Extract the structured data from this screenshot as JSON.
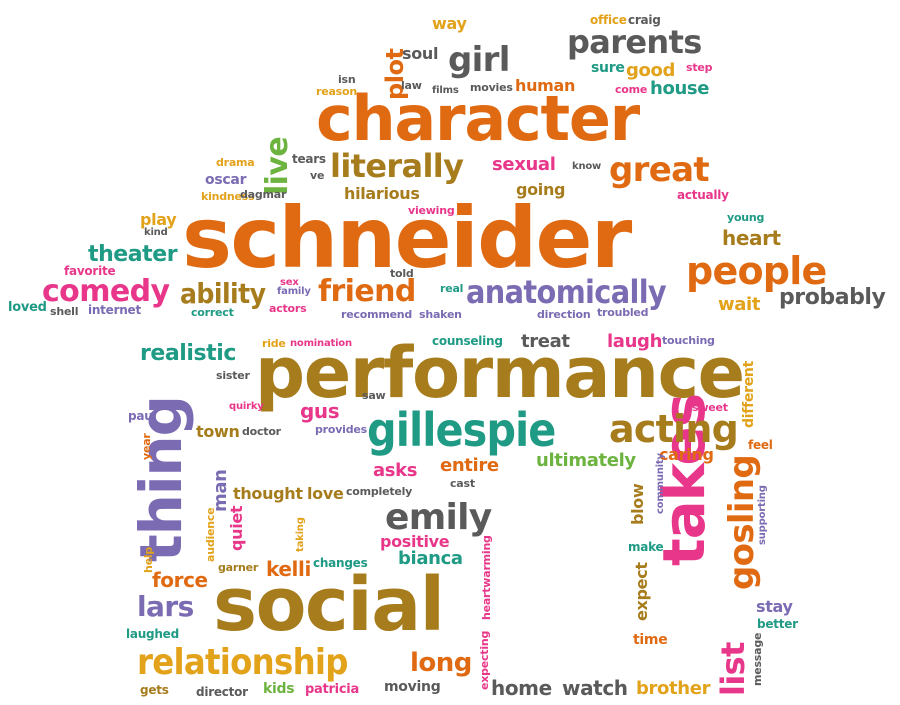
{
  "colors": {
    "orange": "#E06A12",
    "brown": "#A67C1C",
    "teal": "#1F9A84",
    "purple": "#7B6BB2",
    "pink": "#E8378A",
    "gray": "#5A5A5A",
    "green": "#6DB33F",
    "gold": "#E2A21A"
  },
  "words": [
    {
      "name": "word-schneider",
      "text": "schneider",
      "color": "orange"
    },
    {
      "name": "word-performance",
      "text": "performance",
      "color": "brown"
    },
    {
      "name": "word-character",
      "text": "character",
      "color": "orange"
    },
    {
      "name": "word-social",
      "text": "social",
      "color": "brown"
    },
    {
      "name": "word-takes",
      "text": "takes",
      "color": "pink"
    },
    {
      "name": "word-thing",
      "text": "thing",
      "color": "purple"
    },
    {
      "name": "word-gillespie",
      "text": "gillespie",
      "color": "teal"
    },
    {
      "name": "word-relationship",
      "text": "relationship",
      "color": "gold"
    },
    {
      "name": "word-anatomically",
      "text": "anatomically",
      "color": "purple"
    },
    {
      "name": "word-people",
      "text": "people",
      "color": "orange"
    },
    {
      "name": "word-acting",
      "text": "acting",
      "color": "brown"
    },
    {
      "name": "word-literally",
      "text": "literally",
      "color": "brown"
    },
    {
      "name": "word-great",
      "text": "great",
      "color": "orange"
    },
    {
      "name": "word-parents",
      "text": "parents",
      "color": "gray"
    },
    {
      "name": "word-comedy",
      "text": "comedy",
      "color": "pink"
    },
    {
      "name": "word-friend",
      "text": "friend",
      "color": "orange"
    },
    {
      "name": "word-ability",
      "text": "ability",
      "color": "brown"
    },
    {
      "name": "word-emily",
      "text": "emily",
      "color": "gray"
    },
    {
      "name": "word-gosling",
      "text": "gosling",
      "color": "orange"
    },
    {
      "name": "word-lars",
      "text": "lars",
      "color": "purple"
    },
    {
      "name": "word-girl",
      "text": "girl",
      "color": "gray"
    },
    {
      "name": "word-list",
      "text": "list",
      "color": "pink"
    },
    {
      "name": "word-long",
      "text": "long",
      "color": "orange"
    },
    {
      "name": "word-probably",
      "text": "probably",
      "color": "gray"
    },
    {
      "name": "word-realistic",
      "text": "realistic",
      "color": "teal"
    },
    {
      "name": "word-theater",
      "text": "theater",
      "color": "teal"
    },
    {
      "name": "word-heart",
      "text": "heart",
      "color": "brown"
    },
    {
      "name": "word-home",
      "text": "home",
      "color": "gray"
    },
    {
      "name": "word-watch",
      "text": "watch",
      "color": "gray"
    },
    {
      "name": "word-brother",
      "text": "brother",
      "color": "gold"
    },
    {
      "name": "word-force",
      "text": "force",
      "color": "orange"
    },
    {
      "name": "word-kelli",
      "text": "kelli",
      "color": "orange"
    },
    {
      "name": "word-positive",
      "text": "positive",
      "color": "pink"
    },
    {
      "name": "word-bianca",
      "text": "bianca",
      "color": "teal"
    },
    {
      "name": "word-entire",
      "text": "entire",
      "color": "orange"
    },
    {
      "name": "word-ultimately",
      "text": "ultimately",
      "color": "green"
    },
    {
      "name": "word-asks",
      "text": "asks",
      "color": "pink"
    },
    {
      "name": "word-gus",
      "text": "gus",
      "color": "pink"
    },
    {
      "name": "word-town",
      "text": "town",
      "color": "brown"
    },
    {
      "name": "word-thought",
      "text": "thought",
      "color": "brown"
    },
    {
      "name": "word-love",
      "text": "love",
      "color": "brown"
    },
    {
      "name": "word-caring",
      "text": "caring",
      "color": "orange"
    },
    {
      "name": "word-laugh",
      "text": "laugh",
      "color": "pink"
    },
    {
      "name": "word-treat",
      "text": "treat",
      "color": "gray"
    },
    {
      "name": "word-live",
      "text": "live",
      "color": "green"
    },
    {
      "name": "word-plot",
      "text": "plot",
      "color": "orange"
    },
    {
      "name": "word-soul",
      "text": "soul",
      "color": "gray"
    },
    {
      "name": "word-human",
      "text": "human",
      "color": "orange"
    },
    {
      "name": "word-good",
      "text": "good",
      "color": "gold"
    },
    {
      "name": "word-house",
      "text": "house",
      "color": "teal"
    },
    {
      "name": "word-sure",
      "text": "sure",
      "color": "teal"
    },
    {
      "name": "word-sexual",
      "text": "sexual",
      "color": "pink"
    },
    {
      "name": "word-going",
      "text": "going",
      "color": "brown"
    },
    {
      "name": "word-hilarious",
      "text": "hilarious",
      "color": "brown"
    },
    {
      "name": "word-oscar",
      "text": "oscar",
      "color": "purple"
    },
    {
      "name": "word-play",
      "text": "play",
      "color": "gold"
    },
    {
      "name": "word-favorite",
      "text": "favorite",
      "color": "pink"
    },
    {
      "name": "word-loved",
      "text": "loved",
      "color": "teal"
    },
    {
      "name": "word-wait",
      "text": "wait",
      "color": "gold"
    },
    {
      "name": "word-way",
      "text": "way",
      "color": "gold"
    },
    {
      "name": "word-office",
      "text": "office",
      "color": "gold"
    },
    {
      "name": "word-craig",
      "text": "craig",
      "color": "gray"
    },
    {
      "name": "word-step",
      "text": "step",
      "color": "pink"
    },
    {
      "name": "word-come",
      "text": "come",
      "color": "pink"
    },
    {
      "name": "word-isn",
      "text": "isn",
      "color": "gray"
    },
    {
      "name": "word-reason",
      "text": "reason",
      "color": "gold"
    },
    {
      "name": "word-law",
      "text": "law",
      "color": "gray"
    },
    {
      "name": "word-films",
      "text": "films",
      "color": "gray"
    },
    {
      "name": "word-movies",
      "text": "movies",
      "color": "gray"
    },
    {
      "name": "word-tears",
      "text": "tears",
      "color": "gray"
    },
    {
      "name": "word-ve",
      "text": "ve",
      "color": "gray"
    },
    {
      "name": "word-drama",
      "text": "drama",
      "color": "gold"
    },
    {
      "name": "word-kindness",
      "text": "kindness",
      "color": "gold"
    },
    {
      "name": "word-dagmar",
      "text": "dagmar",
      "color": "gray"
    },
    {
      "name": "word-know",
      "text": "know",
      "color": "gray"
    },
    {
      "name": "word-actually",
      "text": "actually",
      "color": "pink"
    },
    {
      "name": "word-viewing",
      "text": "viewing",
      "color": "pink"
    },
    {
      "name": "word-young",
      "text": "young",
      "color": "teal"
    },
    {
      "name": "word-kind",
      "text": "kind",
      "color": "gray"
    },
    {
      "name": "word-told",
      "text": "told",
      "color": "gray"
    },
    {
      "name": "word-sex",
      "text": "sex",
      "color": "pink"
    },
    {
      "name": "word-family",
      "text": "family",
      "color": "purple"
    },
    {
      "name": "word-real",
      "text": "real",
      "color": "teal"
    },
    {
      "name": "word-shell",
      "text": "shell",
      "color": "gray"
    },
    {
      "name": "word-internet",
      "text": "internet",
      "color": "purple"
    },
    {
      "name": "word-correct",
      "text": "correct",
      "color": "teal"
    },
    {
      "name": "word-actors",
      "text": "actors",
      "color": "pink"
    },
    {
      "name": "word-recommend",
      "text": "recommend",
      "color": "purple"
    },
    {
      "name": "word-shaken",
      "text": "shaken",
      "color": "purple"
    },
    {
      "name": "word-direction",
      "text": "direction",
      "color": "purple"
    },
    {
      "name": "word-troubled",
      "text": "troubled",
      "color": "purple"
    },
    {
      "name": "word-ride",
      "text": "ride",
      "color": "gold"
    },
    {
      "name": "word-nomination",
      "text": "nomination",
      "color": "pink"
    },
    {
      "name": "word-counseling",
      "text": "counseling",
      "color": "teal"
    },
    {
      "name": "word-touching",
      "text": "touching",
      "color": "purple"
    },
    {
      "name": "word-sister",
      "text": "sister",
      "color": "gray"
    },
    {
      "name": "word-saw",
      "text": "saw",
      "color": "gray"
    },
    {
      "name": "word-quirky",
      "text": "quirky",
      "color": "pink"
    },
    {
      "name": "word-paul",
      "text": "paul",
      "color": "purple"
    },
    {
      "name": "word-doctor",
      "text": "doctor",
      "color": "gray"
    },
    {
      "name": "word-provides",
      "text": "provides",
      "color": "purple"
    },
    {
      "name": "word-sweet",
      "text": "sweet",
      "color": "pink"
    },
    {
      "name": "word-feel",
      "text": "feel",
      "color": "orange"
    },
    {
      "name": "word-completely",
      "text": "completely",
      "color": "gray"
    },
    {
      "name": "word-cast",
      "text": "cast",
      "color": "gray"
    },
    {
      "name": "word-blow",
      "text": "blow",
      "color": "brown"
    },
    {
      "name": "word-make",
      "text": "make",
      "color": "teal"
    },
    {
      "name": "word-garner",
      "text": "garner",
      "color": "brown"
    },
    {
      "name": "word-changes",
      "text": "changes",
      "color": "teal"
    },
    {
      "name": "word-help",
      "text": "help",
      "color": "gold"
    },
    {
      "name": "word-laughed",
      "text": "laughed",
      "color": "teal"
    },
    {
      "name": "word-gets",
      "text": "gets",
      "color": "brown"
    },
    {
      "name": "word-director",
      "text": "director",
      "color": "gray"
    },
    {
      "name": "word-kids",
      "text": "kids",
      "color": "green"
    },
    {
      "name": "word-patricia",
      "text": "patricia",
      "color": "pink"
    },
    {
      "name": "word-moving",
      "text": "moving",
      "color": "gray"
    },
    {
      "name": "word-time",
      "text": "time",
      "color": "orange"
    },
    {
      "name": "word-stay",
      "text": "stay",
      "color": "purple"
    },
    {
      "name": "word-better",
      "text": "better",
      "color": "teal"
    },
    {
      "name": "word-man",
      "text": "man",
      "color": "purple"
    },
    {
      "name": "word-quiet",
      "text": "quiet",
      "color": "pink"
    },
    {
      "name": "word-year",
      "text": "year",
      "color": "orange"
    },
    {
      "name": "word-audience",
      "text": "audience",
      "color": "gold"
    },
    {
      "name": "word-taking",
      "text": "taking",
      "color": "gold"
    },
    {
      "name": "word-heartwarming",
      "text": "heartwarming",
      "color": "pink"
    },
    {
      "name": "word-expecting",
      "text": "expecting",
      "color": "pink"
    },
    {
      "name": "word-expect",
      "text": "expect",
      "color": "brown"
    },
    {
      "name": "word-different",
      "text": "different",
      "color": "gold"
    },
    {
      "name": "word-community",
      "text": "community",
      "color": "purple"
    },
    {
      "name": "word-supporting",
      "text": "supporting",
      "color": "purple"
    },
    {
      "name": "word-message",
      "text": "message",
      "color": "gray"
    }
  ]
}
